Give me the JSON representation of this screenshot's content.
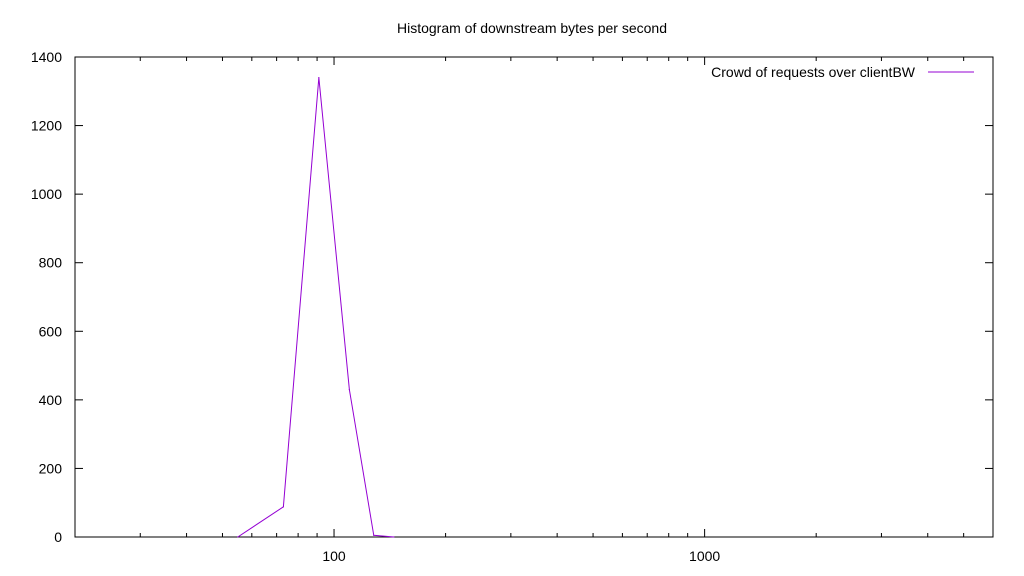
{
  "chart_data": {
    "type": "line",
    "title": "Histogram of downstream bytes per second",
    "xlabel": "",
    "ylabel": "",
    "x_scale": "log",
    "xlim": [
      20,
      6000
    ],
    "ylim": [
      0,
      1400
    ],
    "xticks": [
      {
        "value": 100,
        "label": "100"
      },
      {
        "value": 1000,
        "label": "1000"
      }
    ],
    "x_minor_ticks": [
      20,
      30,
      40,
      50,
      60,
      70,
      80,
      90,
      200,
      300,
      400,
      500,
      600,
      700,
      800,
      900,
      2000,
      3000,
      4000,
      5000,
      6000
    ],
    "yticks": [
      {
        "value": 0,
        "label": "0"
      },
      {
        "value": 200,
        "label": "200"
      },
      {
        "value": 400,
        "label": "400"
      },
      {
        "value": 600,
        "label": "600"
      },
      {
        "value": 800,
        "label": "800"
      },
      {
        "value": 1000,
        "label": "1000"
      },
      {
        "value": 1200,
        "label": "1200"
      },
      {
        "value": 1400,
        "label": "1400"
      }
    ],
    "grid": false,
    "legend_position": "top-right",
    "series": [
      {
        "name": "Crowd of requests over clientBW",
        "color": "#9400d3",
        "points": [
          {
            "x": 55,
            "y": 0
          },
          {
            "x": 73,
            "y": 88
          },
          {
            "x": 91,
            "y": 1340
          },
          {
            "x": 110,
            "y": 430
          },
          {
            "x": 128,
            "y": 5
          },
          {
            "x": 145,
            "y": 0
          }
        ]
      }
    ]
  }
}
